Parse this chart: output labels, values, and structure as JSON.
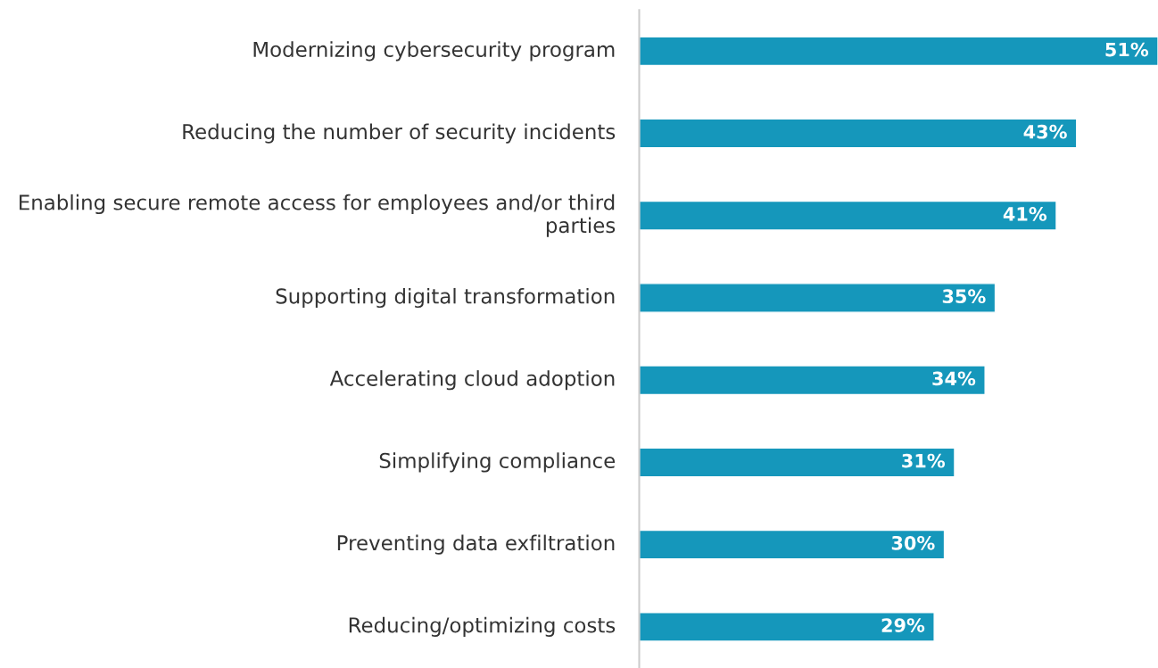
{
  "chart_data": {
    "type": "bar",
    "orientation": "horizontal",
    "categories": [
      "Modernizing cybersecurity program",
      "Reducing the number of security incidents",
      "Enabling secure remote access for employees and/or third parties",
      "Supporting digital transformation",
      "Accelerating cloud adoption",
      "Simplifying compliance",
      "Preventing data exfiltration",
      "Reducing/optimizing costs"
    ],
    "values": [
      51,
      43,
      41,
      35,
      34,
      31,
      30,
      29
    ],
    "value_labels": [
      "51%",
      "43%",
      "41%",
      "35%",
      "34%",
      "31%",
      "30%",
      "29%"
    ],
    "color": "#1597bb",
    "xlim": [
      0,
      51
    ],
    "tick_labels": "y"
  }
}
